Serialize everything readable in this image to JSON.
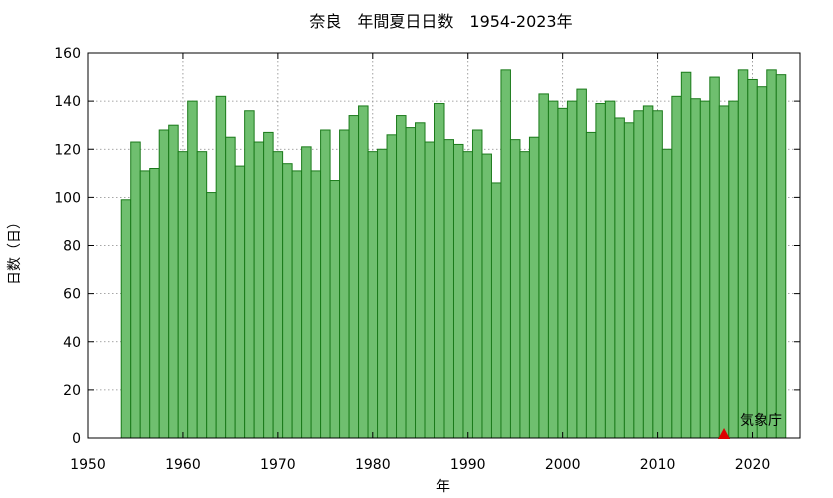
{
  "chart_data": {
    "type": "bar",
    "title": "奈良　年間夏日日数　1954-2023年",
    "xlabel": "年",
    "ylabel": "日数（日）",
    "xlim": [
      1950,
      2025
    ],
    "ylim": [
      0,
      160
    ],
    "xticks": [
      1950,
      1960,
      1970,
      1980,
      1990,
      2000,
      2010,
      2020
    ],
    "yticks": [
      0,
      20,
      40,
      60,
      80,
      100,
      120,
      140,
      160
    ],
    "grid": true,
    "bar_color": "#6fbf6f",
    "bar_edge_color": "#1a7a1a",
    "x": [
      1954,
      1955,
      1956,
      1957,
      1958,
      1959,
      1960,
      1961,
      1962,
      1963,
      1964,
      1965,
      1966,
      1967,
      1968,
      1969,
      1970,
      1971,
      1972,
      1973,
      1974,
      1975,
      1976,
      1977,
      1978,
      1979,
      1980,
      1981,
      1982,
      1983,
      1984,
      1985,
      1986,
      1987,
      1988,
      1989,
      1990,
      1991,
      1992,
      1993,
      1994,
      1995,
      1996,
      1997,
      1998,
      1999,
      2000,
      2001,
      2002,
      2003,
      2004,
      2005,
      2006,
      2007,
      2008,
      2009,
      2010,
      2011,
      2012,
      2013,
      2014,
      2015,
      2016,
      2017,
      2018,
      2019,
      2020,
      2021,
      2022,
      2023
    ],
    "values": [
      99,
      123,
      111,
      112,
      128,
      130,
      119,
      140,
      119,
      102,
      142,
      125,
      113,
      136,
      123,
      127,
      119,
      114,
      111,
      121,
      111,
      128,
      107,
      128,
      134,
      138,
      119,
      120,
      126,
      134,
      129,
      131,
      123,
      139,
      124,
      122,
      119,
      128,
      118,
      106,
      153,
      124,
      119,
      125,
      143,
      140,
      137,
      140,
      145,
      127,
      139,
      140,
      133,
      131,
      136,
      138,
      136,
      120,
      142,
      152,
      141,
      140,
      150,
      138,
      140,
      153,
      149,
      146,
      153,
      151
    ],
    "annotation": {
      "text": "気象庁",
      "marker_x": 2017,
      "marker_y": 0,
      "marker_color": "#dd0000"
    }
  }
}
